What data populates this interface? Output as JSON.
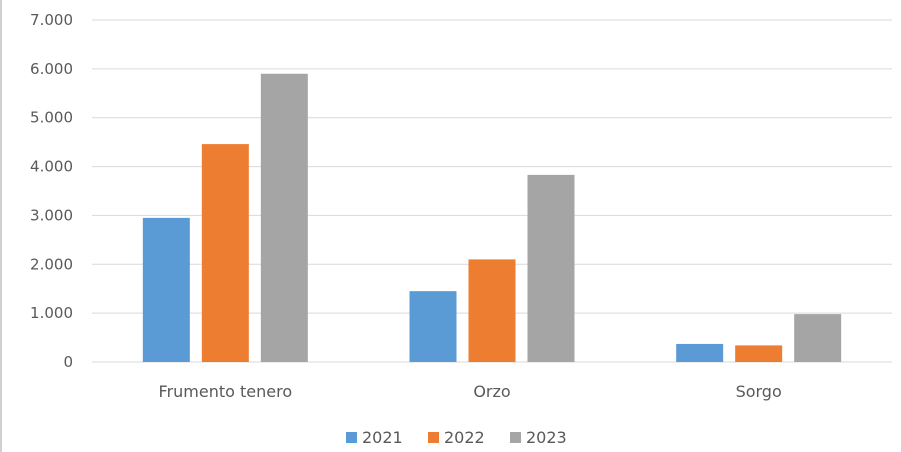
{
  "chart_data": {
    "type": "bar",
    "title": "",
    "xlabel": "",
    "ylabel": "",
    "categories": [
      "Frumento tenero",
      "Orzo",
      "Sorgo"
    ],
    "series": [
      {
        "name": "2021",
        "color": "#5b9bd5",
        "values": [
          2950,
          1450,
          370
        ]
      },
      {
        "name": "2022",
        "color": "#ed7d31",
        "values": [
          4460,
          2100,
          340
        ]
      },
      {
        "name": "2023",
        "color": "#a5a5a5",
        "values": [
          5900,
          3830,
          980
        ]
      }
    ],
    "ylim": [
      0,
      7000
    ],
    "yticks": [
      0,
      1000,
      2000,
      3000,
      4000,
      5000,
      6000,
      7000
    ],
    "ytick_labels": [
      "0",
      "1.000",
      "2.000",
      "3.000",
      "4.000",
      "5.000",
      "6.000",
      "7.000"
    ],
    "grid": true,
    "legend_position": "bottom"
  }
}
